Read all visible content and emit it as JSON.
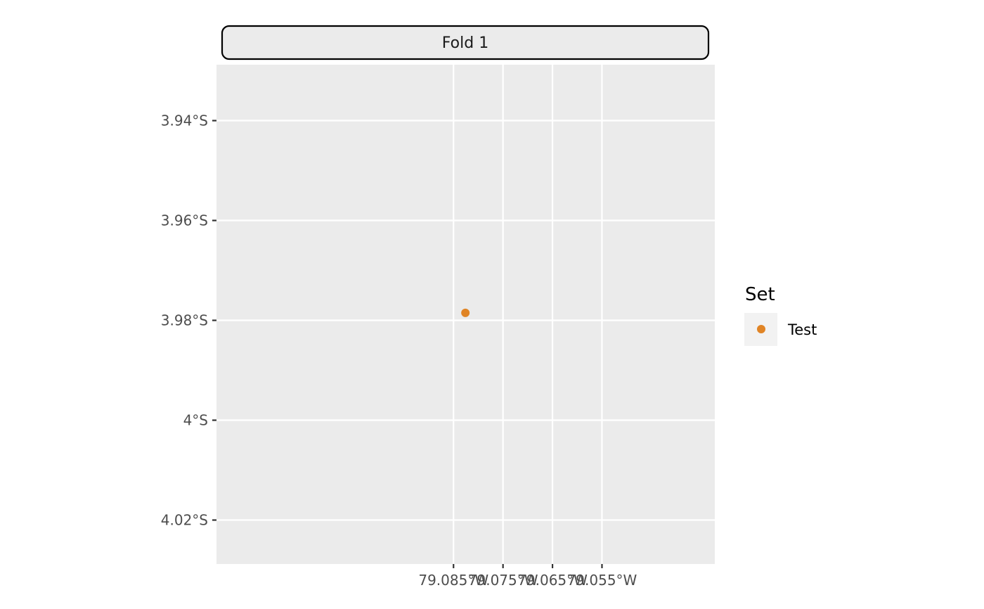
{
  "chart_data": {
    "type": "scatter",
    "facet": "Fold 1",
    "x_ticks": [
      {
        "value": -79.085,
        "label": "79.085°W"
      },
      {
        "value": -79.075,
        "label": "79.075°W"
      },
      {
        "value": -79.065,
        "label": "79.065°W"
      },
      {
        "value": -79.055,
        "label": "79.055°W"
      }
    ],
    "y_ticks": [
      {
        "value": -3.94,
        "label": "3.94°S"
      },
      {
        "value": -3.96,
        "label": "3.96°S"
      },
      {
        "value": -3.98,
        "label": "3.98°S"
      },
      {
        "value": -4.0,
        "label": "4°S"
      },
      {
        "value": -4.02,
        "label": "4.02°S"
      }
    ],
    "xlim": [
      -79.1329,
      -79.0322
    ],
    "ylim": [
      -4.0288,
      -3.9288
    ],
    "grid": true,
    "legend": {
      "title": "Set",
      "position": "right",
      "entries": [
        {
          "label": "Test",
          "color": "#E08425"
        }
      ]
    },
    "series": [
      {
        "name": "Test",
        "color": "#E08425",
        "points": [
          {
            "x": -79.0826,
            "y": -3.9785
          }
        ]
      }
    ]
  },
  "colors": {
    "panel_background": "#EBEBEB",
    "gridline": "#FFFFFF",
    "strip_background": "#EBEBEB",
    "strip_border": "#000000",
    "tick_text": "#4D4D4D"
  }
}
